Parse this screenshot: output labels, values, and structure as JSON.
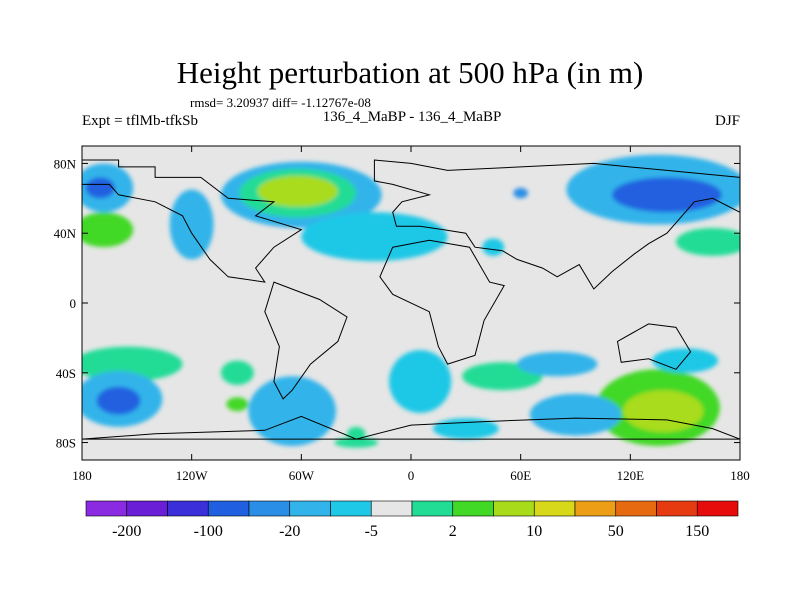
{
  "chart_data": {
    "type": "heatmap",
    "title": "Height perturbation at 500 hPa (in m)",
    "subtitle": "rmsd= 3.20937 diff= -1.12767e-08",
    "left_label": "Expt = tflMb-tfkSb",
    "center_label": "136_4_MaBP - 136_4_MaBP",
    "right_label": "DJF",
    "x_ticks": [
      {
        "value": -180,
        "label": "180"
      },
      {
        "value": -120,
        "label": "120W"
      },
      {
        "value": -60,
        "label": "60W"
      },
      {
        "value": 0,
        "label": "0"
      },
      {
        "value": 60,
        "label": "60E"
      },
      {
        "value": 120,
        "label": "120E"
      },
      {
        "value": 180,
        "label": "180"
      }
    ],
    "y_ticks": [
      {
        "value": 80,
        "label": "80N"
      },
      {
        "value": 40,
        "label": "40N"
      },
      {
        "value": 0,
        "label": "0"
      },
      {
        "value": -40,
        "label": "40S"
      },
      {
        "value": -80,
        "label": "80S"
      }
    ],
    "xlim": [
      -180,
      180
    ],
    "ylim": [
      -90,
      90
    ],
    "colorbar": {
      "colors": [
        "#8a2be2",
        "#6a1fd6",
        "#3a2fd8",
        "#2060e0",
        "#2a8ee6",
        "#32b4ea",
        "#1ec8e6",
        "#e6e6e6",
        "#22dc96",
        "#42d826",
        "#a8dc1a",
        "#d8d81a",
        "#ec9e16",
        "#e66a10",
        "#e63a10",
        "#e60c0c"
      ],
      "labels": [
        {
          "boundary": 1,
          "text": "-200"
        },
        {
          "boundary": 3,
          "text": "-100"
        },
        {
          "boundary": 5,
          "text": "-20"
        },
        {
          "boundary": 7,
          "text": "-5"
        },
        {
          "boundary": 9,
          "text": "2"
        },
        {
          "boundary": 11,
          "text": "10"
        },
        {
          "boundary": 13,
          "text": "50"
        },
        {
          "boundary": 15,
          "text": "150"
        }
      ]
    },
    "field_blobs": [
      {
        "lon": -60,
        "lat": 62,
        "rlon": 44,
        "rlat": 19,
        "level": 5
      },
      {
        "lon": -62,
        "lat": 63,
        "rlon": 32,
        "rlat": 14,
        "level": 8
      },
      {
        "lon": -62,
        "lat": 64,
        "rlon": 22,
        "rlat": 9,
        "level": 10
      },
      {
        "lon": 135,
        "lat": 65,
        "rlon": 50,
        "rlat": 20,
        "level": 5
      },
      {
        "lon": 140,
        "lat": 62,
        "rlon": 30,
        "rlat": 10,
        "level": 3
      },
      {
        "lon": 165,
        "lat": 35,
        "rlon": 20,
        "rlat": 8,
        "level": 8
      },
      {
        "lon": -168,
        "lat": 66,
        "rlon": 16,
        "rlat": 14,
        "level": 5
      },
      {
        "lon": -170,
        "lat": 66,
        "rlon": 8,
        "rlat": 6,
        "level": 3
      },
      {
        "lon": -168,
        "lat": 42,
        "rlon": 16,
        "rlat": 10,
        "level": 9
      },
      {
        "lon": -120,
        "lat": 45,
        "rlon": 12,
        "rlat": 20,
        "level": 5
      },
      {
        "lon": -20,
        "lat": 38,
        "rlon": 40,
        "rlat": 14,
        "level": 6
      },
      {
        "lon": 45,
        "lat": 32,
        "rlon": 6,
        "rlat": 5,
        "level": 6
      },
      {
        "lon": 60,
        "lat": 63,
        "rlon": 4,
        "rlat": 3,
        "level": 4
      },
      {
        "lon": -155,
        "lat": -35,
        "rlon": 30,
        "rlat": 10,
        "level": 8
      },
      {
        "lon": -160,
        "lat": -55,
        "rlon": 24,
        "rlat": 16,
        "level": 5
      },
      {
        "lon": -160,
        "lat": -56,
        "rlon": 12,
        "rlat": 8,
        "level": 3
      },
      {
        "lon": -65,
        "lat": -62,
        "rlon": 24,
        "rlat": 20,
        "level": 5
      },
      {
        "lon": -95,
        "lat": -40,
        "rlon": 9,
        "rlat": 7,
        "level": 8
      },
      {
        "lon": -95,
        "lat": -58,
        "rlon": 6,
        "rlat": 4,
        "level": 9
      },
      {
        "lon": 5,
        "lat": -45,
        "rlon": 17,
        "rlat": 18,
        "level": 6
      },
      {
        "lon": 50,
        "lat": -42,
        "rlon": 22,
        "rlat": 8,
        "level": 8
      },
      {
        "lon": 80,
        "lat": -35,
        "rlon": 22,
        "rlat": 7,
        "level": 5
      },
      {
        "lon": 135,
        "lat": -60,
        "rlon": 34,
        "rlat": 22,
        "level": 9
      },
      {
        "lon": 138,
        "lat": -62,
        "rlon": 22,
        "rlat": 12,
        "level": 10
      },
      {
        "lon": 90,
        "lat": -64,
        "rlon": 25,
        "rlat": 12,
        "level": 5
      },
      {
        "lon": 150,
        "lat": -33,
        "rlon": 18,
        "rlat": 7,
        "level": 6
      },
      {
        "lon": 30,
        "lat": -72,
        "rlon": 18,
        "rlat": 6,
        "level": 6
      },
      {
        "lon": -30,
        "lat": -80,
        "rlon": 12,
        "rlat": 3,
        "level": 8
      },
      {
        "lon": -30,
        "lat": -75,
        "rlon": 5,
        "rlat": 4,
        "level": 8
      }
    ],
    "continents": [
      [
        [
          -180,
          82
        ],
        [
          -160,
          82
        ],
        [
          -160,
          78
        ],
        [
          -140,
          78
        ],
        [
          -140,
          72
        ],
        [
          -115,
          72
        ],
        [
          -100,
          60
        ],
        [
          -75,
          58
        ],
        [
          -85,
          50
        ],
        [
          -60,
          42
        ],
        [
          -75,
          32
        ],
        [
          -85,
          20
        ],
        [
          -80,
          12
        ],
        [
          -100,
          15
        ],
        [
          -110,
          25
        ],
        [
          -120,
          40
        ],
        [
          -125,
          50
        ],
        [
          -140,
          58
        ],
        [
          -160,
          62
        ],
        [
          -165,
          68
        ],
        [
          -180,
          68
        ]
      ],
      [
        [
          -75,
          12
        ],
        [
          -50,
          2
        ],
        [
          -35,
          -8
        ],
        [
          -40,
          -22
        ],
        [
          -55,
          -35
        ],
        [
          -65,
          -50
        ],
        [
          -70,
          -55
        ],
        [
          -75,
          -45
        ],
        [
          -72,
          -25
        ],
        [
          -80,
          -5
        ]
      ],
      [
        [
          -20,
          82
        ],
        [
          0,
          80
        ],
        [
          20,
          76
        ],
        [
          60,
          78
        ],
        [
          100,
          80
        ],
        [
          140,
          76
        ],
        [
          180,
          72
        ],
        [
          180,
          52
        ],
        [
          165,
          60
        ],
        [
          155,
          58
        ],
        [
          145,
          46
        ],
        [
          140,
          40
        ],
        [
          130,
          34
        ],
        [
          122,
          28
        ],
        [
          110,
          18
        ],
        [
          100,
          8
        ],
        [
          92,
          22
        ],
        [
          80,
          15
        ],
        [
          72,
          20
        ],
        [
          58,
          25
        ],
        [
          50,
          30
        ],
        [
          35,
          32
        ],
        [
          30,
          40
        ],
        [
          18,
          42
        ],
        [
          5,
          44
        ],
        [
          -8,
          44
        ],
        [
          -10,
          52
        ],
        [
          -5,
          58
        ],
        [
          10,
          62
        ],
        [
          -10,
          68
        ],
        [
          -20,
          70
        ]
      ],
      [
        [
          -10,
          32
        ],
        [
          10,
          36
        ],
        [
          32,
          32
        ],
        [
          43,
          12
        ],
        [
          51,
          10
        ],
        [
          40,
          -10
        ],
        [
          35,
          -30
        ],
        [
          20,
          -35
        ],
        [
          15,
          -25
        ],
        [
          10,
          -5
        ],
        [
          -10,
          5
        ],
        [
          -17,
          15
        ]
      ],
      [
        [
          113,
          -22
        ],
        [
          130,
          -12
        ],
        [
          145,
          -14
        ],
        [
          153,
          -28
        ],
        [
          145,
          -38
        ],
        [
          130,
          -32
        ],
        [
          115,
          -34
        ]
      ],
      [
        [
          -180,
          -78
        ],
        [
          -140,
          -75
        ],
        [
          -80,
          -73
        ],
        [
          -60,
          -65
        ],
        [
          -30,
          -78
        ],
        [
          0,
          -70
        ],
        [
          40,
          -68
        ],
        [
          90,
          -66
        ],
        [
          140,
          -67
        ],
        [
          165,
          -72
        ],
        [
          180,
          -78
        ]
      ]
    ]
  }
}
